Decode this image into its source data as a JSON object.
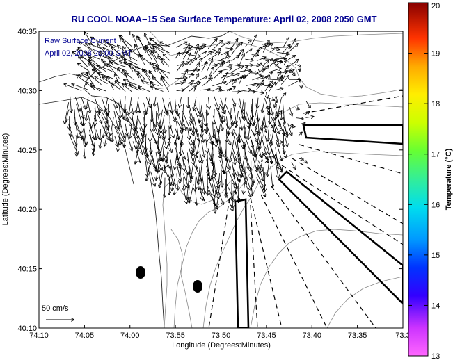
{
  "title": "RU COOL  NOAA–15  Sea Surface Temperature:  April 02, 2008 2050 GMT",
  "annotation": {
    "line1": "Raw Surface Current",
    "line2": "April 02, 2008 20:00 GMT"
  },
  "scale_label": "50 cm/s",
  "axes": {
    "xlabel": "Longitude (Degrees:Minutes)",
    "ylabel": "Latitude (Degrees:Minutes)",
    "x_ticks": [
      "74:10",
      "74:05",
      "74:00",
      "73:55",
      "73:50",
      "73:45",
      "73:40",
      "73:35",
      "73:3"
    ],
    "y_ticks": [
      "40:35",
      "40:30",
      "40:25",
      "40:20",
      "40:15",
      "40:10"
    ]
  },
  "colorbar": {
    "label": "Temperature (°C)",
    "min": 13,
    "max": 20,
    "ticks": [
      "20",
      "19",
      "18",
      "17",
      "16",
      "15",
      "14",
      "13"
    ]
  }
}
